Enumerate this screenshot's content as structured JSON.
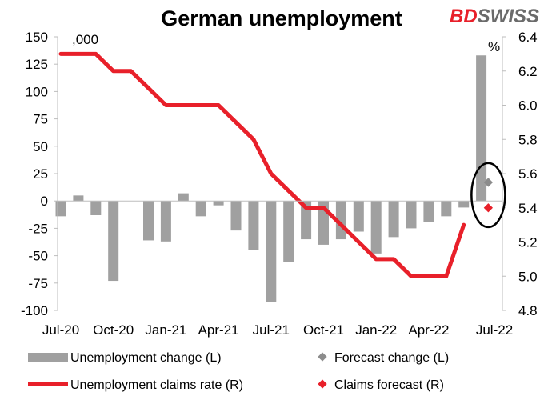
{
  "header": {
    "title": "German unemployment",
    "brand_part1": "BD",
    "brand_part2": "SWISS"
  },
  "colors": {
    "bars": "#a0a0a0",
    "claims_line": "#e8202a",
    "forecast_change": "#8c8c8c",
    "claims_forecast": "#e8202a",
    "brand_red": "#e8202a",
    "brand_dark": "#6b6b6b",
    "circle": "#000000"
  },
  "chart_data": {
    "type": "bar+line",
    "title": "German unemployment",
    "left_axis": {
      "unit_label": ",000",
      "range": [
        -100,
        150
      ],
      "ticks": [
        -100,
        -75,
        -50,
        -25,
        0,
        25,
        50,
        75,
        100,
        125,
        150
      ]
    },
    "right_axis": {
      "unit_label": "%",
      "range": [
        4.8,
        6.4
      ],
      "ticks": [
        4.8,
        5.0,
        5.2,
        5.4,
        5.6,
        5.8,
        6.0,
        6.2,
        6.4
      ]
    },
    "months": [
      "Jul-20",
      "Aug-20",
      "Sep-20",
      "Oct-20",
      "Nov-20",
      "Dec-20",
      "Jan-21",
      "Feb-21",
      "Mar-21",
      "Apr-21",
      "May-21",
      "Jun-21",
      "Jul-21",
      "Aug-21",
      "Sep-21",
      "Oct-21",
      "Nov-21",
      "Dec-21",
      "Jan-22",
      "Feb-22",
      "Mar-22",
      "Apr-22",
      "May-22",
      "Jun-22",
      "Jul-22"
    ],
    "x_tick_labels": [
      "Jul-20",
      "Oct-20",
      "Jan-21",
      "Apr-21",
      "Jul-21",
      "Oct-21",
      "Jan-22",
      "Apr-22",
      "Jul-22"
    ],
    "x_tick_indices": [
      0,
      3,
      6,
      9,
      12,
      15,
      18,
      21,
      24
    ],
    "series": [
      {
        "name": "Unemployment change (L)",
        "kind": "bar",
        "axis": "left",
        "values": [
          -14,
          5,
          -13,
          -73,
          null,
          -36,
          -37,
          7,
          -14,
          -4,
          -27,
          -45,
          -92,
          -56,
          -35,
          -40,
          -35,
          -28,
          -48,
          -33,
          -25,
          -19,
          -14,
          -6,
          133
        ]
      },
      {
        "name": "Unemployment claims rate (R)",
        "kind": "line",
        "axis": "right",
        "values": [
          6.3,
          6.3,
          6.3,
          6.2,
          6.2,
          6.1,
          6.0,
          6.0,
          6.0,
          6.0,
          5.9,
          5.8,
          5.6,
          5.5,
          5.4,
          5.4,
          5.3,
          5.2,
          5.1,
          5.1,
          5.0,
          5.0,
          5.0,
          5.3,
          null
        ]
      },
      {
        "name": "Forecast change (L)",
        "kind": "marker",
        "axis": "left",
        "index": 24.4,
        "value": 17
      },
      {
        "name": "Claims forecast (R)",
        "kind": "marker",
        "axis": "right",
        "index": 24.4,
        "value": 5.4
      }
    ],
    "legend": {
      "placement": "bottom",
      "entries": [
        "Unemployment change (L)",
        "Forecast change (L)",
        "Unemployment claims rate (R)",
        "Claims forecast (R)"
      ]
    }
  }
}
